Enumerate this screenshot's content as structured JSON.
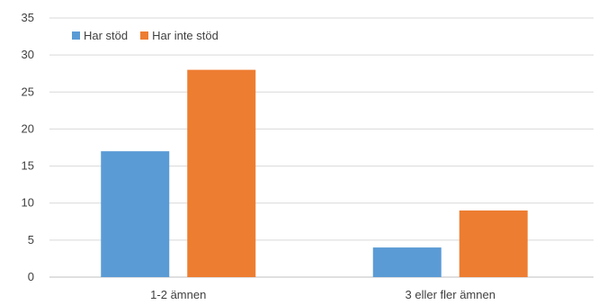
{
  "chart_data": {
    "type": "bar",
    "title": "",
    "xlabel": "",
    "ylabel": "",
    "categories": [
      "1-2 ämnen",
      "3 eller fler ämnen"
    ],
    "series": [
      {
        "name": "Har stöd",
        "values": [
          17,
          4
        ],
        "color": "#5B9BD5"
      },
      {
        "name": "Har inte stöd",
        "values": [
          28,
          9
        ],
        "color": "#ED7D31"
      }
    ],
    "ylim": [
      0,
      35
    ],
    "yticks": [
      0,
      5,
      10,
      15,
      20,
      25,
      30,
      35
    ],
    "grid": true,
    "legend_position": "top-left"
  }
}
